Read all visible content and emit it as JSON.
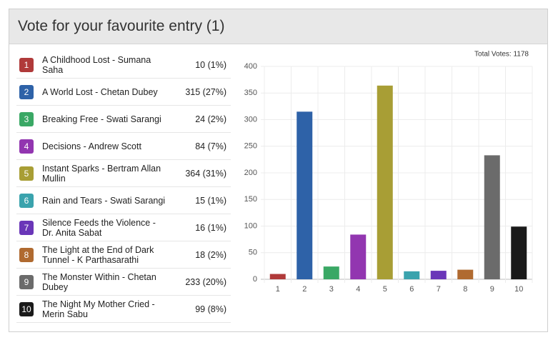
{
  "header": {
    "title": "Vote for your favourite entry (1)"
  },
  "entries": [
    {
      "title": "A Childhood Lost - Sumana Saha",
      "percent": "(1%)"
    },
    {
      "title": "A World Lost - Chetan Dubey",
      "percent": "(27%)"
    },
    {
      "title": "Breaking Free - Swati Sarangi",
      "percent": "(2%)"
    },
    {
      "title": "Decisions - Andrew Scott",
      "percent": "(7%)"
    },
    {
      "title": "Instant Sparks - Bertram Allan Mullin",
      "percent": "(31%)"
    },
    {
      "title": "Rain and Tears - Swati Sarangi",
      "percent": "(1%)"
    },
    {
      "title": "Silence Feeds the Violence - Dr. Anita Sabat",
      "percent": "(1%)"
    },
    {
      "title": "The Light at the End of Dark Tunnel - K Parthasarathi",
      "percent": "(2%)"
    },
    {
      "title": "The Monster Within - Chetan Dubey",
      "percent": "(20%)"
    },
    {
      "title": "The Night My Mother Cried - Merin Sabu",
      "percent": "(8%)"
    }
  ],
  "chart_data": {
    "type": "bar",
    "annotation": "Total Votes: 1178",
    "categories": [
      "1",
      "2",
      "3",
      "4",
      "5",
      "6",
      "7",
      "8",
      "9",
      "10"
    ],
    "values": [
      10,
      315,
      24,
      84,
      364,
      15,
      16,
      18,
      233,
      99
    ],
    "colors": [
      "#b03a3a",
      "#2e62a8",
      "#3aa865",
      "#9236b0",
      "#a89e35",
      "#3aa3ad",
      "#6a36b8",
      "#b06a30",
      "#6b6b6b",
      "#1a1a1a"
    ],
    "ylim": [
      0,
      400
    ],
    "yticks": [
      0,
      50,
      100,
      150,
      200,
      250,
      300,
      350,
      400
    ],
    "grid": true
  }
}
